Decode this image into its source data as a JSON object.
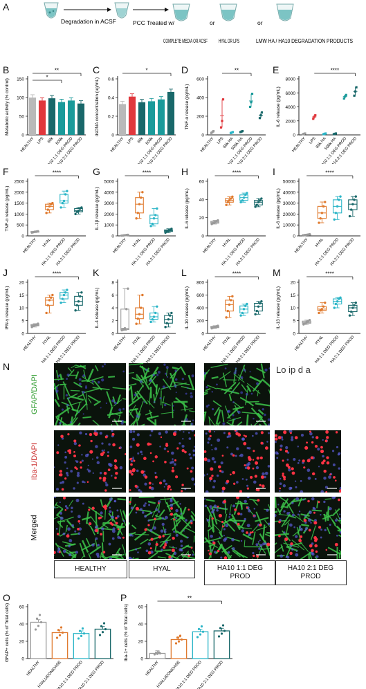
{
  "colors": {
    "healthy": "#b9b9b9",
    "red": "#e0373c",
    "orange": "#e07a2e",
    "teal": "#1a9a9a",
    "darkteal": "#19686a",
    "cyan": "#2bb5c7",
    "grey": "#9a9a9a"
  },
  "schematic": {
    "step1": "Degradation in ACSF",
    "step2": "PCC Treated w/",
    "opt1": "COMPLETE MEDIA OR ACSF",
    "or1": "or",
    "opt2": "HYAL OR LPS",
    "or2": "or",
    "opt3": "LMW HA / HA10 DEGRADATION PRODUCTS"
  },
  "letters": {
    "A": "A",
    "B": "B",
    "C": "C",
    "D": "D",
    "E": "E",
    "F": "F",
    "G": "G",
    "H": "H",
    "I": "I",
    "J": "J",
    "K": "K",
    "L": "L",
    "M": "M",
    "N": "N",
    "O": "O",
    "P": "P"
  },
  "chart_data": [
    {
      "id": "B",
      "type": "bar",
      "ylabel": "Metabolic activity (% control)",
      "ylim": [
        0,
        150
      ],
      "yticks": [
        0,
        50,
        100,
        150
      ],
      "categories": [
        "HEALTHY",
        "LPS",
        "60k",
        "500k",
        "HA10 1:1 DEG PROD",
        "HA10 2:1 DEG PROD"
      ],
      "values": [
        100,
        92,
        98,
        88,
        92,
        84
      ],
      "sig": [
        {
          "from": 0,
          "to": 5,
          "label": "**"
        },
        {
          "from": 0,
          "to": 3,
          "label": "*"
        }
      ]
    },
    {
      "id": "C",
      "type": "bar",
      "ylabel": "dsDNA concentration (ug/mL)",
      "ylim": [
        0,
        0.6
      ],
      "yticks": [
        0.0,
        0.2,
        0.4,
        0.6
      ],
      "categories": [
        "HEALTHY",
        "LPS",
        "60k",
        "500k",
        "HA10 1:1 DEG PROD",
        "HA10 2:1 DEG PROD"
      ],
      "values": [
        0.33,
        0.41,
        0.35,
        0.36,
        0.38,
        0.46
      ],
      "sig": [
        {
          "from": 0,
          "to": 5,
          "label": "*"
        }
      ]
    },
    {
      "id": "D",
      "type": "scatter",
      "ylabel": "TNF-α release (pg/mL)",
      "ylim": [
        0,
        600
      ],
      "yticks": [
        0,
        200,
        400,
        600
      ],
      "categories": [
        "HEALTHY",
        "LPS",
        "60k HA",
        "500k HA",
        "HA10 1:1 DEG PROD",
        "HA10 2:1 DEG PROD"
      ],
      "values": [
        [
          20,
          30,
          40
        ],
        [
          80,
          150,
          380
        ],
        [
          20,
          25,
          30
        ],
        [
          30,
          35,
          40
        ],
        [
          300,
          350,
          440
        ],
        [
          180,
          210,
          240
        ]
      ],
      "sig": [
        {
          "from": 1,
          "to": 4,
          "label": "**"
        }
      ]
    },
    {
      "id": "E",
      "type": "scatter",
      "ylabel": "IL-6 release (pg/mL)",
      "ylim": [
        0,
        8000
      ],
      "yticks": [
        0,
        2000,
        4000,
        6000,
        8000
      ],
      "categories": [
        "HEALTHY",
        "LPS",
        "60k HA",
        "500k HA",
        "HA10 1:1 DEG PROD",
        "HA10 2:1 DEG PROD"
      ],
      "values": [
        [
          100,
          150,
          200
        ],
        [
          2300,
          2600,
          2800
        ],
        [
          100,
          150,
          200
        ],
        [
          100,
          150,
          200
        ],
        [
          5200,
          5500,
          5700
        ],
        [
          5600,
          6200,
          6800
        ]
      ],
      "sig": [
        {
          "from": 1,
          "to": 5,
          "label": "****"
        }
      ]
    },
    {
      "id": "F",
      "type": "box",
      "ylabel": "TNF-α release (pg/mL)",
      "ylim": [
        0,
        2500
      ],
      "yticks": [
        0,
        500,
        1000,
        1500,
        2000,
        2500
      ],
      "categories": [
        "HEALTHY",
        "HYAL",
        "HA 1:1 DEG PROD",
        "HA 2:1 DEG PROD"
      ],
      "values": [
        [
          150,
          170,
          190,
          200,
          210
        ],
        [
          1050,
          1200,
          1350,
          1450,
          1500
        ],
        [
          1300,
          1500,
          1600,
          1900,
          2050
        ],
        [
          1000,
          1100,
          1150,
          1250,
          1300
        ]
      ],
      "sig": [
        {
          "from": 0,
          "to": 3,
          "label": "****"
        }
      ]
    },
    {
      "id": "G",
      "type": "box",
      "ylabel": "IL-1β release (pg/mL)",
      "ylim": [
        0,
        5000
      ],
      "yticks": [
        0,
        1000,
        2000,
        3000,
        4000,
        5000
      ],
      "categories": [
        "HEALTHY",
        "HYAL",
        "HA 1:1 DEG PROD",
        "HA 2:1 DEG PROD"
      ],
      "values": [
        [
          20,
          40,
          60,
          80,
          100
        ],
        [
          1600,
          2100,
          2900,
          3500,
          4000
        ],
        [
          900,
          1100,
          1600,
          1900,
          2500
        ],
        [
          300,
          400,
          480,
          550,
          650
        ]
      ],
      "sig": [
        {
          "from": 0,
          "to": 3,
          "label": "****"
        }
      ]
    },
    {
      "id": "H",
      "type": "box",
      "ylabel": "IL-6 release (pg/mL)",
      "ylim": [
        0,
        60
      ],
      "yticks": [
        0,
        20,
        40,
        60
      ],
      "categories": [
        "HEALTHY",
        "HYAL",
        "HA 1:1 DEG PROD",
        "HA 2:1 DEG PROD"
      ],
      "values": [
        [
          13,
          14,
          15,
          16,
          17
        ],
        [
          34,
          37,
          39,
          41,
          43
        ],
        [
          37,
          39,
          42,
          45,
          47
        ],
        [
          32,
          34,
          37,
          39,
          41
        ]
      ],
      "sig": [
        {
          "from": 0,
          "to": 3,
          "label": "****"
        }
      ]
    },
    {
      "id": "I",
      "type": "box",
      "ylabel": "IL-6 release (pg/mL)",
      "ylim": [
        0,
        50000
      ],
      "yticks": [
        0,
        10000,
        20000,
        30000,
        40000,
        50000
      ],
      "categories": [
        "HEALTHY",
        "HYAL",
        "HA 1:1 DEG PROD",
        "HA 2:1 DEG PROD"
      ],
      "values": [
        [
          500,
          800,
          1000,
          1200,
          1500
        ],
        [
          12000,
          16000,
          21000,
          27000,
          31000
        ],
        [
          15000,
          21000,
          27000,
          33000,
          36000
        ],
        [
          18000,
          24000,
          29000,
          33000,
          36000
        ]
      ],
      "sig": [
        {
          "from": 0,
          "to": 3,
          "label": "****"
        }
      ]
    },
    {
      "id": "J",
      "type": "box",
      "ylabel": "IFN-γ release (pg/mL)",
      "ylim": [
        0,
        20
      ],
      "yticks": [
        0,
        5,
        10,
        15,
        20
      ],
      "categories": [
        "HEALTHY",
        "HYAL",
        "HA 1:1 DEG PROD",
        "HA 2:1 DEG PROD"
      ],
      "values": [
        [
          2.5,
          3,
          3.2,
          3.5,
          3.8
        ],
        [
          8,
          11,
          13,
          14,
          15
        ],
        [
          12,
          13.5,
          15,
          16,
          17
        ],
        [
          9,
          11,
          12.5,
          14.5,
          16
        ]
      ],
      "sig": [
        {
          "from": 0,
          "to": 3,
          "label": "****"
        }
      ]
    },
    {
      "id": "K",
      "type": "box",
      "ylabel": "IL-4 release (pg/mL)",
      "ylim": [
        0,
        8
      ],
      "yticks": [
        0,
        2,
        4,
        6,
        8
      ],
      "categories": [
        "HEALTHY",
        "HYAL",
        "HA 1:1 DEG PROD",
        "HA 2:1 DEG PROD"
      ],
      "values": [
        [
          0.5,
          0.6,
          0.8,
          3.8,
          7
        ],
        [
          1.5,
          2.3,
          3,
          4,
          6
        ],
        [
          1.8,
          2.2,
          2.6,
          3.2,
          4.2
        ],
        [
          1,
          1.6,
          2.2,
          2.8,
          3.2
        ]
      ],
      "sig": []
    },
    {
      "id": "L",
      "type": "box",
      "ylabel": "IL-10 release (pg/mL)",
      "ylim": [
        0,
        800
      ],
      "yticks": [
        0,
        200,
        400,
        600,
        800
      ],
      "categories": [
        "HEALTHY",
        "HYAL",
        "HA 1:1 DEG PROD",
        "HA 2:1 DEG PROD"
      ],
      "values": [
        [
          80,
          90,
          100,
          110,
          120
        ],
        [
          250,
          350,
          450,
          520,
          580
        ],
        [
          280,
          320,
          380,
          430,
          460
        ],
        [
          300,
          350,
          420,
          470,
          500
        ]
      ],
      "sig": [
        {
          "from": 0,
          "to": 3,
          "label": "****"
        }
      ]
    },
    {
      "id": "M",
      "type": "box",
      "ylabel": "IL-13 release (pg/mL)",
      "ylim": [
        0,
        20
      ],
      "yticks": [
        0,
        5,
        10,
        15,
        20
      ],
      "categories": [
        "HEALTHY",
        "HYAL",
        "HA 1:1 DEG PROD",
        "HA 2:1 DEG PROD"
      ],
      "values": [
        [
          3.5,
          4,
          4.3,
          4.8,
          5.2
        ],
        [
          8,
          9,
          9.5,
          10.5,
          12
        ],
        [
          10,
          11.5,
          12.5,
          13.5,
          14
        ],
        [
          7,
          8.5,
          10,
          11,
          12
        ]
      ],
      "sig": [
        {
          "from": 0,
          "to": 3,
          "label": "****"
        }
      ]
    },
    {
      "id": "O",
      "type": "bar",
      "ylabel": "GFAP+ cells (% of Total cells)",
      "ylim": [
        0,
        60
      ],
      "yticks": [
        0,
        20,
        40,
        60
      ],
      "categories": [
        "HEALTHY",
        "HYALURONIDASE",
        "HA10 1:1 DEG PROD",
        "HA10 2:1 DEG PROD"
      ],
      "values": [
        42,
        30,
        29,
        34
      ],
      "sig": []
    },
    {
      "id": "P",
      "type": "bar",
      "ylabel": "Iba-1+ cells (% of Total cells)",
      "ylim": [
        0,
        60
      ],
      "yticks": [
        0,
        20,
        40,
        60
      ],
      "categories": [
        "HEALTHY",
        "HYALURONIDASE",
        "HA10 1:1 DEG PROD",
        "HA10 2:1 DEG PROD"
      ],
      "values": [
        6,
        22,
        31,
        32
      ],
      "sig": [
        {
          "from": 0,
          "to": 3,
          "label": "**"
        }
      ]
    }
  ],
  "micro": {
    "rows": [
      "GFAP/DAPI",
      "Iba-1/DAPI",
      "Merged"
    ],
    "cols": [
      "HEALTHY",
      "HYAL",
      "HA10 1:1 DEG PROD",
      "HA10 2:1 DEG PROD"
    ],
    "overlay": "Lo ip d a"
  }
}
